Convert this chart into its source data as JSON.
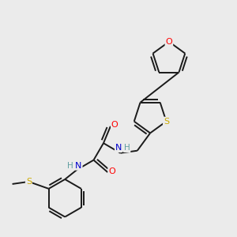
{
  "bg_color": "#ebebeb",
  "bond_color": "#1a1a1a",
  "atom_colors": {
    "O": "#ff0000",
    "N": "#0000cc",
    "S_thiophene": "#ccaa00",
    "S_thioether": "#ccaa00",
    "H": "#5f9ea0",
    "C": "#1a1a1a"
  },
  "lw": 1.4
}
